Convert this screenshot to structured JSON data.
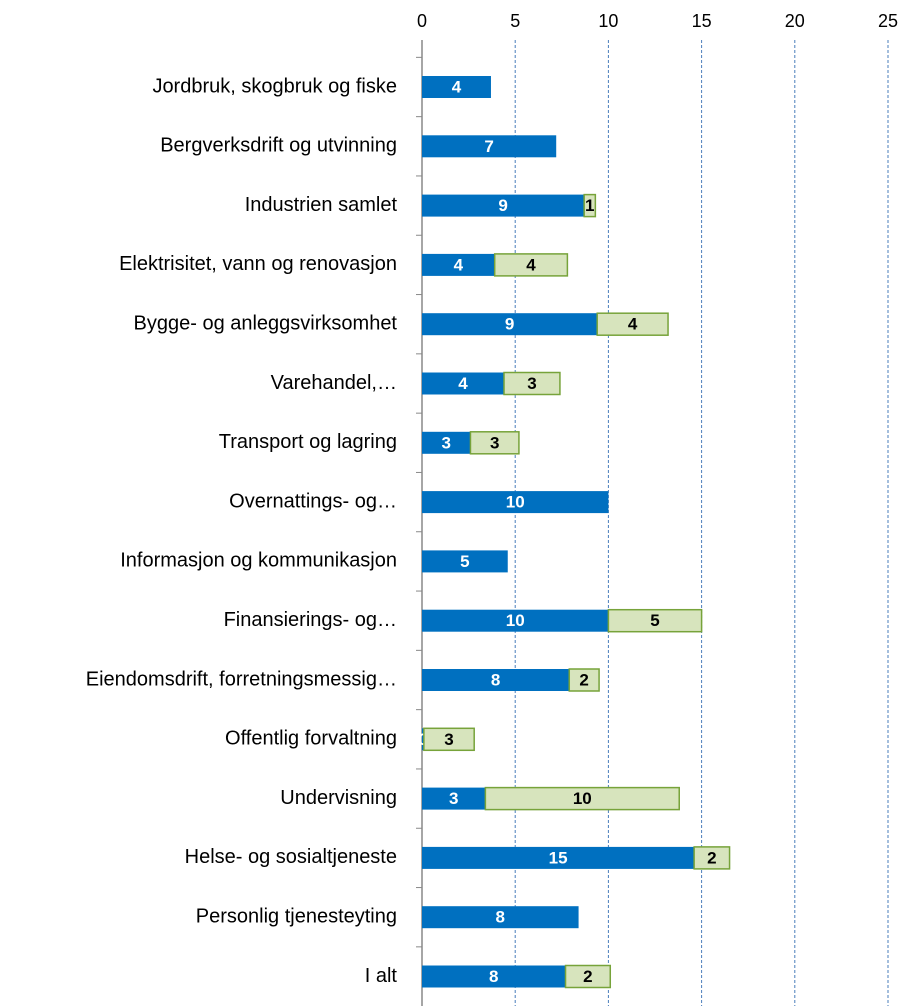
{
  "chart_data": {
    "type": "stacked_barh",
    "categories": [
      "Jordbruk, skogbruk og fiske",
      "Bergverksdrift og utvinning",
      "Industrien samlet",
      "Elektrisitet, vann og renovasjon",
      "Bygge- og anleggsvirksomhet",
      "Varehandel,…",
      "Transport og lagring",
      "Overnattings- og…",
      "Informasjon og kommunikasjon",
      "Finansierings- og…",
      "Eiendomsdrift, forretningsmessig…",
      "Offentlig forvaltning",
      "Undervisning",
      "Helse- og sosialtjeneste",
      "Personlig tjenesteyting",
      "I alt"
    ],
    "series": [
      {
        "color": "#0070c0",
        "label_color": "#ffffff",
        "values": [
          3.7,
          7.2,
          8.7,
          3.9,
          9.4,
          4.4,
          2.6,
          10.0,
          4.6,
          10.0,
          7.9,
          0.1,
          3.4,
          14.6,
          8.4,
          7.7
        ],
        "value_labels": [
          "4",
          "7",
          "9",
          "4",
          "9",
          "4",
          "3",
          "10",
          "5",
          "10",
          "8",
          "0",
          "3",
          "15",
          "8",
          "8"
        ]
      },
      {
        "color": "#d7e4bd",
        "stroke": "#77a33a",
        "label_color": "#000000",
        "values": [
          null,
          null,
          0.6,
          3.9,
          3.8,
          3.0,
          2.6,
          null,
          null,
          5.0,
          1.6,
          2.7,
          10.4,
          1.9,
          null,
          2.4
        ],
        "value_labels": [
          null,
          null,
          "1",
          "4",
          "4",
          "3",
          "3",
          null,
          null,
          "5",
          "2",
          "3",
          "10",
          "2",
          null,
          "2"
        ]
      }
    ],
    "xlim": [
      0,
      25
    ],
    "xticks": [
      0,
      5,
      10,
      15,
      20,
      25
    ],
    "grid": true
  }
}
